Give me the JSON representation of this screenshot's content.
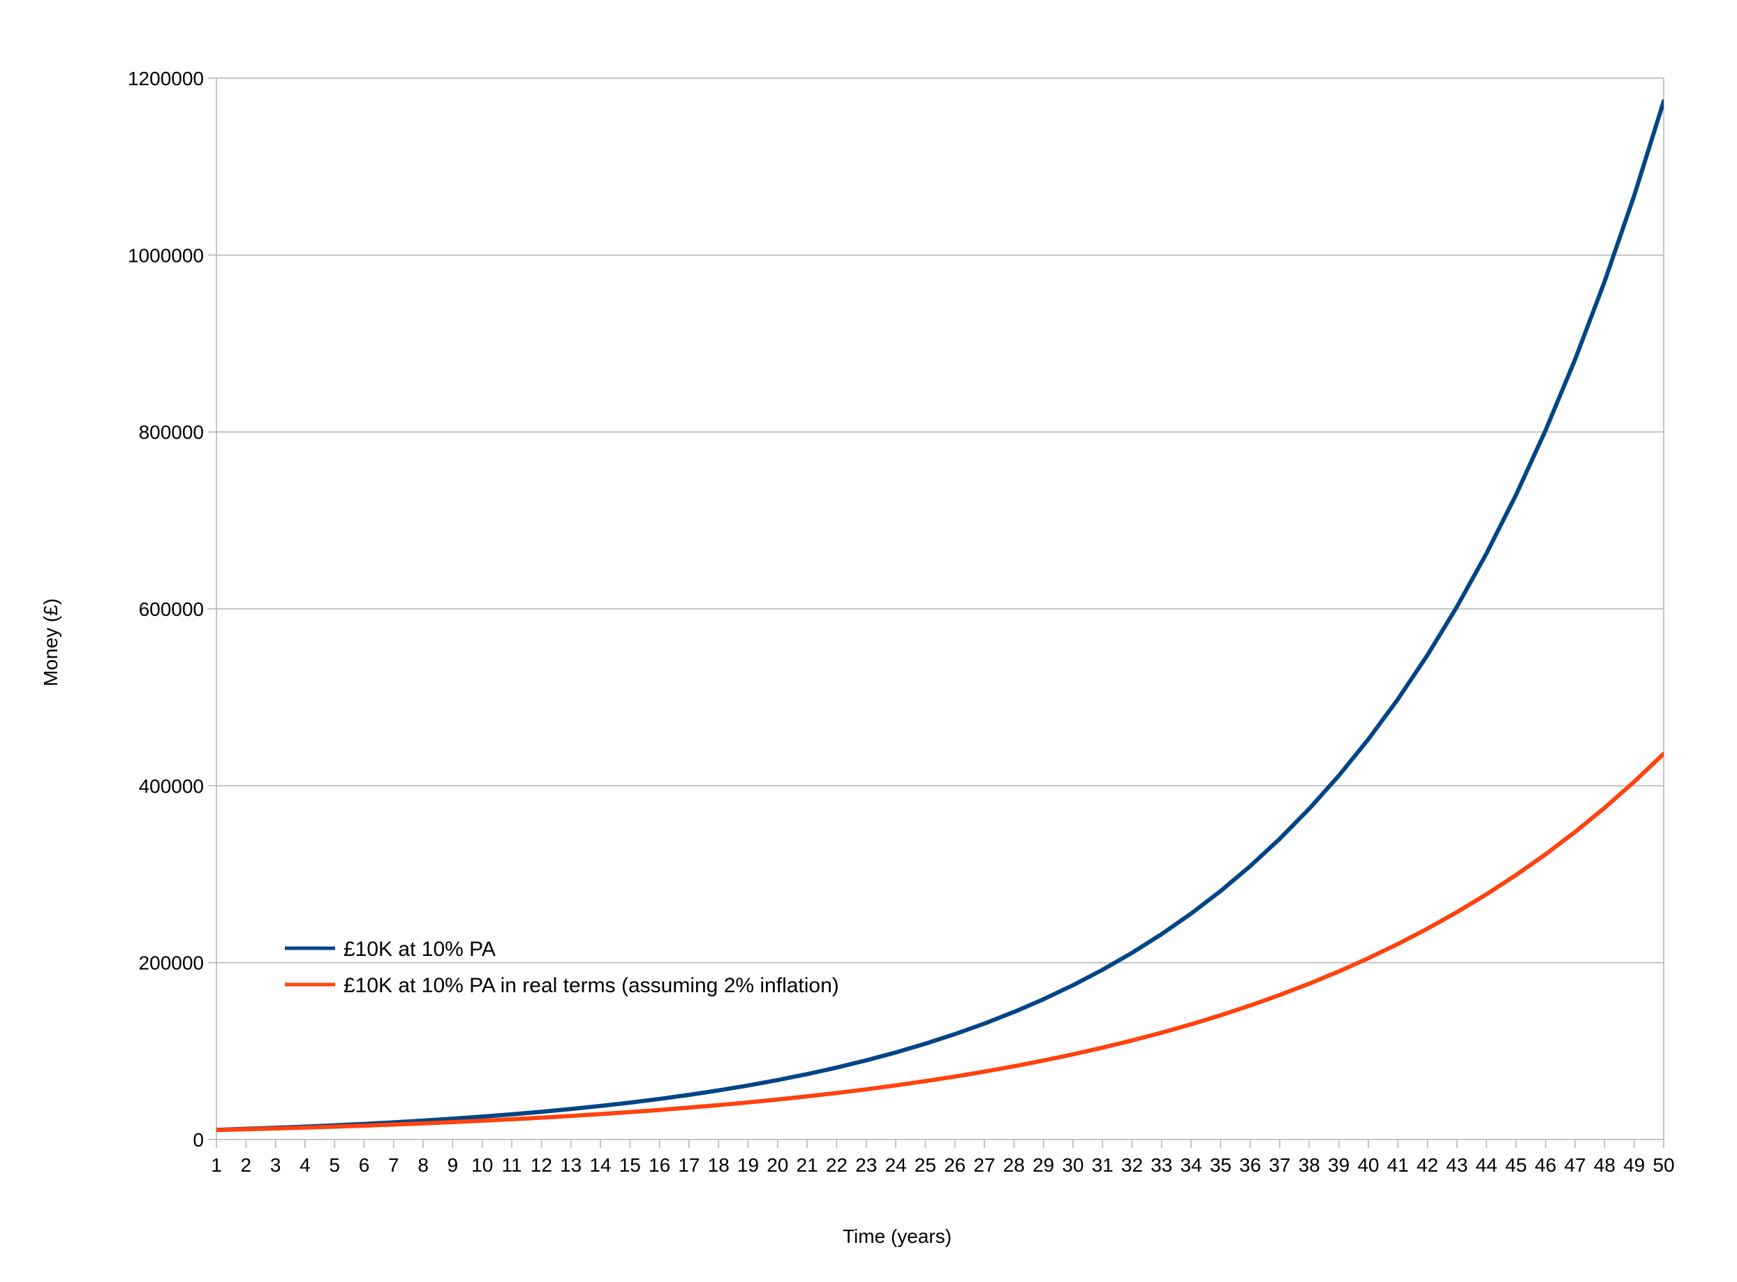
{
  "chart_data": {
    "type": "line",
    "title": "",
    "xlabel": "Time (years)",
    "ylabel": "Money (£)",
    "ylim": [
      0,
      1200000
    ],
    "yticks": [
      "0",
      "200000",
      "400000",
      "600000",
      "800000",
      "1000000",
      "1200000"
    ],
    "ytick_values": [
      0,
      200000,
      400000,
      600000,
      800000,
      1000000,
      1200000
    ],
    "x": [
      1,
      2,
      3,
      4,
      5,
      6,
      7,
      8,
      9,
      10,
      11,
      12,
      13,
      14,
      15,
      16,
      17,
      18,
      19,
      20,
      21,
      22,
      23,
      24,
      25,
      26,
      27,
      28,
      29,
      30,
      31,
      32,
      33,
      34,
      35,
      36,
      37,
      38,
      39,
      40,
      41,
      42,
      43,
      44,
      45,
      46,
      47,
      48,
      49,
      50
    ],
    "grid": true,
    "legend_position": "lower-left",
    "series": [
      {
        "name": "£10K at 10% PA",
        "color": "#004586",
        "values": [
          11000,
          12100,
          13310,
          14641,
          16105,
          17716,
          19487,
          21436,
          23579,
          25937,
          28531,
          31384,
          34523,
          37975,
          41772,
          45950,
          50545,
          55599,
          61159,
          67275,
          74002,
          81403,
          89543,
          98497,
          108347,
          119182,
          131100,
          144210,
          158631,
          174494,
          191943,
          211138,
          232252,
          255477,
          281024,
          309127,
          340039,
          374043,
          411448,
          452593,
          497852,
          547637,
          602401,
          662641,
          728905,
          801795,
          881975,
          970172,
          1067190,
          1173909
        ]
      },
      {
        "name": "£10K at 10% PA in real terms (assuming 2% inflation)",
        "color": "#ff420e",
        "values": [
          10784,
          11630,
          12542,
          13526,
          14587,
          15731,
          16965,
          18296,
          19731,
          21279,
          22948,
          24748,
          26689,
          28782,
          31040,
          33474,
          36100,
          38931,
          41985,
          45278,
          48829,
          52659,
          56790,
          61244,
          66048,
          71228,
          76815,
          82840,
          89338,
          96345,
          103902,
          112051,
          120840,
          130318,
          140540,
          151563,
          163451,
          176272,
          190098,
          205009,
          221089,
          238431,
          257133,
          277301,
          299052,
          322509,
          347806,
          375086,
          404507,
          436235
        ]
      }
    ]
  }
}
